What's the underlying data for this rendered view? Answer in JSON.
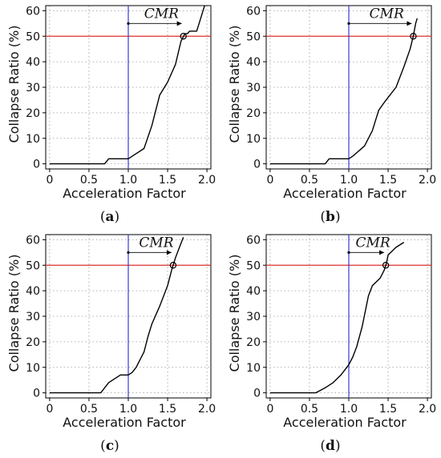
{
  "chart_data": [
    {
      "type": "line",
      "panel_label": "(a)",
      "panel_letter": "a",
      "xlabel": "Acceleration Factor",
      "ylabel": "Collapse Ratio (%)",
      "xlim": [
        -0.05,
        2.05
      ],
      "ylim": [
        -2,
        62
      ],
      "xticks": [
        "0",
        "0.5",
        "1.0",
        "1.5",
        "2.0"
      ],
      "xtick_values": [
        0,
        0.5,
        1.0,
        1.5,
        2.0
      ],
      "yticks": [
        "0",
        "10",
        "20",
        "30",
        "40",
        "50",
        "60"
      ],
      "ytick_values": [
        0,
        10,
        20,
        30,
        40,
        50,
        60
      ],
      "grid": "dotted",
      "reference_lines": {
        "horizontal_y": 50,
        "vertical_x": 1.0
      },
      "annotation": {
        "text": "CMR",
        "from_x": 1.0,
        "to_x": 1.7,
        "y": 55
      },
      "cmr_point": {
        "x": 1.7,
        "y": 50
      },
      "series": [
        {
          "values_x": [
            0,
            0.7,
            0.75,
            1.0,
            1.05,
            1.2,
            1.3,
            1.4,
            1.5,
            1.6,
            1.67,
            1.72,
            1.75,
            1.78,
            1.87,
            1.9,
            1.95,
            1.97
          ],
          "values_y": [
            0,
            0,
            2,
            2,
            3,
            6,
            15,
            27,
            32,
            39,
            48,
            51,
            51,
            52,
            52,
            55,
            60,
            62
          ]
        }
      ],
      "colors": {
        "curve": "#000000",
        "horizontal_line": "#e03030",
        "vertical_line": "#3a3ad8",
        "grid": "#999999"
      }
    },
    {
      "type": "line",
      "panel_label": "(b)",
      "panel_letter": "b",
      "xlabel": "Acceleration Factor",
      "ylabel": "Collapse Ratio (%)",
      "xlim": [
        -0.05,
        2.05
      ],
      "ylim": [
        -2,
        62
      ],
      "xticks": [
        "0",
        "0.5",
        "1.0",
        "1.5",
        "2.0"
      ],
      "xtick_values": [
        0,
        0.5,
        1.0,
        1.5,
        2.0
      ],
      "yticks": [
        "0",
        "10",
        "20",
        "30",
        "40",
        "50",
        "60"
      ],
      "ytick_values": [
        0,
        10,
        20,
        30,
        40,
        50,
        60
      ],
      "grid": "dotted",
      "reference_lines": {
        "horizontal_y": 50,
        "vertical_x": 1.0
      },
      "annotation": {
        "text": "CMR",
        "from_x": 1.0,
        "to_x": 1.82,
        "y": 55
      },
      "cmr_point": {
        "x": 1.82,
        "y": 50
      },
      "series": [
        {
          "values_x": [
            0,
            0.7,
            0.75,
            1.0,
            1.05,
            1.2,
            1.3,
            1.38,
            1.45,
            1.6,
            1.7,
            1.78,
            1.82,
            1.85,
            1.87
          ],
          "values_y": [
            0,
            0,
            2,
            2,
            3,
            7,
            13,
            21,
            24,
            30,
            38,
            45,
            50,
            55,
            57
          ]
        }
      ],
      "colors": {
        "curve": "#000000",
        "horizontal_line": "#e03030",
        "vertical_line": "#3a3ad8",
        "grid": "#999999"
      }
    },
    {
      "type": "line",
      "panel_label": "(c)",
      "panel_letter": "c",
      "xlabel": "Acceleration Factor",
      "ylabel": "Collapse Ratio (%)",
      "xlim": [
        -0.05,
        2.05
      ],
      "ylim": [
        -2,
        62
      ],
      "xticks": [
        "0",
        "0.5",
        "1.0",
        "1.5",
        "2.0"
      ],
      "xtick_values": [
        0,
        0.5,
        1.0,
        1.5,
        2.0
      ],
      "yticks": [
        "0",
        "10",
        "20",
        "30",
        "40",
        "50",
        "60"
      ],
      "ytick_values": [
        0,
        10,
        20,
        30,
        40,
        50,
        60
      ],
      "grid": "dotted",
      "reference_lines": {
        "horizontal_y": 50,
        "vertical_x": 1.0
      },
      "annotation": {
        "text": "CMR",
        "from_x": 1.0,
        "to_x": 1.57,
        "y": 55
      },
      "cmr_point": {
        "x": 1.57,
        "y": 50
      },
      "series": [
        {
          "values_x": [
            0,
            0.65,
            0.75,
            0.8,
            0.9,
            1.0,
            1.05,
            1.1,
            1.2,
            1.25,
            1.3,
            1.4,
            1.5,
            1.55,
            1.6,
            1.65,
            1.7
          ],
          "values_y": [
            0,
            0,
            4,
            5,
            7,
            7,
            8,
            10,
            16,
            22,
            27,
            34,
            42,
            48,
            53,
            57,
            61
          ]
        }
      ],
      "colors": {
        "curve": "#000000",
        "horizontal_line": "#e03030",
        "vertical_line": "#3a3ad8",
        "grid": "#999999"
      }
    },
    {
      "type": "line",
      "panel_label": "(d)",
      "panel_letter": "d",
      "xlabel": "Acceleration Factor",
      "ylabel": "Collapse Ratio (%)",
      "xlim": [
        -0.05,
        2.05
      ],
      "ylim": [
        -2,
        62
      ],
      "xticks": [
        "0",
        "0.5",
        "1.0",
        "1.5",
        "2.0"
      ],
      "xtick_values": [
        0,
        0.5,
        1.0,
        1.5,
        2.0
      ],
      "yticks": [
        "0",
        "10",
        "20",
        "30",
        "40",
        "50",
        "60"
      ],
      "ytick_values": [
        0,
        10,
        20,
        30,
        40,
        50,
        60
      ],
      "grid": "dotted",
      "reference_lines": {
        "horizontal_y": 50,
        "vertical_x": 1.0
      },
      "annotation": {
        "text": "CMR",
        "from_x": 1.0,
        "to_x": 1.47,
        "y": 55
      },
      "cmr_point": {
        "x": 1.47,
        "y": 50
      },
      "series": [
        {
          "values_x": [
            0,
            0.58,
            0.7,
            0.8,
            0.9,
            1.0,
            1.05,
            1.1,
            1.17,
            1.25,
            1.3,
            1.4,
            1.45,
            1.48,
            1.5,
            1.6,
            1.7
          ],
          "values_y": [
            0,
            0,
            2,
            4,
            7,
            11,
            14,
            18,
            26,
            38,
            42,
            45,
            48,
            51,
            54,
            57,
            59
          ]
        }
      ],
      "colors": {
        "curve": "#000000",
        "horizontal_line": "#e03030",
        "vertical_line": "#3a3ad8",
        "grid": "#999999"
      }
    }
  ]
}
